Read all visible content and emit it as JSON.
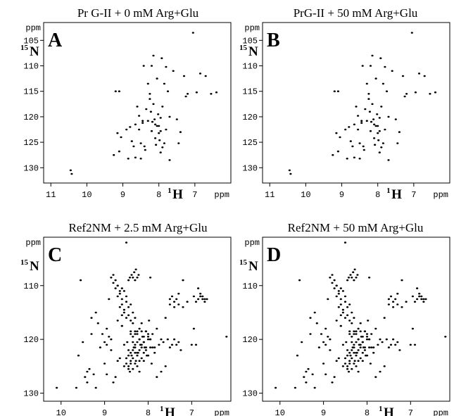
{
  "chart_data": [
    {
      "type": "scatter",
      "title": "Pr G-II + 0 mM Arg+Glu",
      "panel_label": "A",
      "y_nucleus": {
        "mass": "15",
        "element": "N"
      },
      "x_nucleus": {
        "mass": "1",
        "element": "H"
      },
      "y_unit": "ppm",
      "x_unit": "ppm",
      "x_reversed": true,
      "y_reversed": true,
      "xlim": [
        11.2,
        6.0
      ],
      "ylim": [
        101.5,
        133.0
      ],
      "x_ticks": [
        "11",
        "10",
        "9",
        "8",
        "7"
      ],
      "y_ticks": [
        "105",
        "110",
        "115",
        "120",
        "125",
        "130"
      ],
      "x": [
        10.45,
        10.42,
        9.25,
        9.1,
        9.05,
        8.85,
        8.7,
        8.65,
        8.6,
        8.55,
        8.5,
        8.45,
        8.42,
        8.38,
        8.3,
        8.25,
        8.22,
        8.2,
        8.18,
        8.15,
        8.12,
        8.1,
        8.08,
        8.05,
        8.02,
        8.0,
        7.98,
        7.95,
        7.92,
        7.9,
        7.85,
        7.8,
        7.75,
        7.7,
        7.6,
        7.5,
        7.45,
        7.3,
        7.2,
        7.05,
        6.95,
        6.85,
        6.7,
        6.55,
        6.4,
        9.2,
        9.1,
        8.9,
        8.8,
        8.65,
        8.5,
        8.35,
        8.3,
        8.2,
        8.15,
        8.05,
        7.95,
        7.9,
        7.8,
        7.7,
        8.4,
        8.45,
        8.0,
        7.85,
        9.15,
        8.75,
        8.55,
        8.25,
        8.1,
        7.95,
        7.4,
        7.25
      ],
      "y": [
        130.5,
        131.2,
        127.5,
        126.8,
        124.0,
        128.2,
        125.8,
        121.5,
        118.0,
        122.5,
        125.2,
        121.2,
        110.0,
        126.5,
        120.8,
        115.5,
        119.0,
        122.8,
        121.0,
        117.5,
        120.5,
        124.2,
        125.5,
        121.8,
        119.5,
        123.2,
        124.6,
        120.2,
        108.5,
        126.0,
        113.5,
        110.2,
        115.0,
        128.5,
        111.0,
        120.5,
        125.2,
        112.0,
        115.5,
        103.5,
        115.2,
        111.5,
        112.0,
        115.5,
        115.2,
        115.0,
        115.0,
        122.5,
        122.0,
        128.0,
        128.2,
        118.5,
        113.5,
        110.0,
        108.0,
        112.5,
        122.8,
        118.0,
        122.5,
        120.0,
        125.8,
        120.8,
        121.8,
        125.2,
        123.2,
        124.8,
        119.8,
        116.5,
        121.5,
        127.0,
        123.0,
        116.0
      ]
    },
    {
      "type": "scatter",
      "title": "PrG-II + 50 mM Arg+Glu",
      "panel_label": "B",
      "y_nucleus": {
        "mass": "15",
        "element": "N"
      },
      "x_nucleus": {
        "mass": "1",
        "element": "H"
      },
      "y_unit": "ppm",
      "x_unit": "ppm",
      "x_reversed": true,
      "y_reversed": true,
      "xlim": [
        11.2,
        6.0
      ],
      "ylim": [
        101.5,
        133.0
      ],
      "x_ticks": [
        "11",
        "10",
        "9",
        "8",
        "7"
      ],
      "y_ticks": [
        "105",
        "110",
        "115",
        "120",
        "125",
        "130"
      ],
      "x": [
        10.45,
        10.42,
        9.25,
        9.1,
        9.05,
        8.85,
        8.7,
        8.65,
        8.6,
        8.55,
        8.5,
        8.45,
        8.42,
        8.38,
        8.3,
        8.25,
        8.22,
        8.2,
        8.18,
        8.15,
        8.12,
        8.1,
        8.08,
        8.05,
        8.02,
        8.0,
        7.98,
        7.95,
        7.92,
        7.9,
        7.85,
        7.8,
        7.75,
        7.7,
        7.6,
        7.5,
        7.45,
        7.3,
        7.2,
        7.05,
        6.95,
        6.85,
        6.7,
        6.55,
        6.4,
        9.2,
        9.1,
        8.9,
        8.8,
        8.65,
        8.5,
        8.35,
        8.3,
        8.2,
        8.15,
        8.05,
        7.95,
        7.9,
        7.8,
        7.7,
        8.4,
        8.45,
        8.0,
        7.85,
        9.15,
        8.75,
        8.55,
        8.25,
        8.1,
        7.95,
        7.4,
        7.25
      ],
      "y": [
        130.5,
        131.2,
        127.5,
        126.8,
        124.0,
        128.2,
        125.8,
        121.5,
        118.0,
        122.5,
        125.2,
        121.2,
        110.0,
        126.5,
        120.8,
        115.5,
        119.0,
        122.8,
        121.0,
        117.5,
        120.5,
        124.2,
        125.5,
        121.8,
        119.5,
        123.2,
        124.6,
        120.2,
        108.5,
        126.0,
        113.5,
        110.2,
        115.0,
        128.5,
        111.0,
        120.5,
        125.2,
        112.0,
        115.5,
        103.5,
        115.2,
        111.5,
        112.0,
        115.5,
        115.2,
        115.0,
        115.0,
        122.5,
        122.0,
        128.0,
        128.2,
        118.5,
        113.5,
        110.0,
        108.0,
        112.5,
        122.8,
        118.0,
        122.5,
        120.0,
        125.8,
        120.8,
        121.8,
        125.2,
        123.2,
        124.8,
        119.8,
        116.5,
        121.5,
        127.0,
        123.0,
        116.0
      ]
    },
    {
      "type": "scatter",
      "title": "Ref2NM + 2.5 mM Arg+Glu",
      "panel_label": "C",
      "y_nucleus": {
        "mass": "15",
        "element": "N"
      },
      "x_nucleus": {
        "mass": "1",
        "element": "H"
      },
      "y_unit": "ppm",
      "x_unit": "ppm",
      "x_reversed": true,
      "y_reversed": true,
      "xlim": [
        10.4,
        6.1
      ],
      "ylim": [
        101.0,
        131.5
      ],
      "x_ticks": [
        "10",
        "9",
        "8",
        "7"
      ],
      "y_ticks": [
        "110",
        "120",
        "130"
      ],
      "x": [
        10.1,
        9.65,
        9.55,
        9.5,
        9.45,
        9.4,
        9.35,
        9.3,
        9.25,
        9.2,
        9.1,
        9.05,
        9.0,
        8.95,
        8.9,
        8.85,
        8.8,
        8.75,
        8.7,
        8.65,
        8.6,
        8.55,
        8.5,
        8.48,
        8.45,
        8.42,
        8.4,
        8.38,
        8.35,
        8.33,
        8.3,
        8.28,
        8.25,
        8.23,
        8.2,
        8.18,
        8.15,
        8.13,
        8.1,
        8.08,
        8.05,
        8.03,
        8.0,
        7.98,
        7.95,
        7.92,
        7.9,
        7.85,
        7.8,
        7.75,
        7.7,
        7.65,
        7.6,
        7.55,
        7.5,
        7.45,
        7.4,
        7.35,
        7.3,
        7.25,
        7.2,
        7.1,
        7.0,
        6.95,
        6.9,
        6.85,
        6.8,
        6.75,
        6.7,
        6.65,
        6.2,
        8.45,
        8.42,
        8.38,
        8.35,
        8.3,
        8.25,
        8.32,
        8.28,
        8.22,
        7.95,
        7.5,
        7.45,
        7.4,
        7.35,
        7.3,
        6.95,
        6.9,
        6.85,
        6.8,
        6.75,
        6.7,
        8.4,
        8.35,
        8.3,
        8.25,
        8.2,
        8.15,
        8.1,
        8.05,
        8.0,
        7.95,
        7.9,
        7.85,
        8.35,
        8.3,
        8.25,
        8.2,
        8.15,
        8.1,
        8.05,
        8.0,
        7.95,
        8.45,
        8.4,
        8.35,
        8.3,
        8.25,
        8.2,
        8.15,
        8.1,
        8.05,
        8.0,
        8.5,
        8.45,
        8.4,
        8.35,
        8.3,
        8.25,
        8.2,
        8.15,
        8.1,
        8.55,
        8.5,
        8.45,
        8.4,
        8.35,
        8.3,
        8.25,
        8.2,
        8.6,
        8.55,
        8.5,
        8.45,
        8.4,
        8.35,
        8.3,
        8.65,
        8.6,
        8.55,
        8.5,
        8.45,
        8.4,
        8.7,
        8.65,
        8.6,
        8.55,
        8.5,
        8.75,
        8.7,
        8.65,
        8.6,
        8.8,
        8.75,
        8.7,
        8.85,
        8.8,
        7.5,
        7.4,
        7.3,
        7.2,
        7.6,
        7.7,
        7.8,
        9.3,
        9.0,
        8.95,
        8.9,
        8.85,
        9.6,
        9.15,
        8.7,
        8.6,
        9.4,
        9.2,
        8.95
      ],
      "y": [
        129.0,
        129.0,
        109.0,
        120.5,
        127.0,
        126.0,
        125.5,
        116.0,
        126.5,
        115.0,
        121.5,
        119.0,
        124.5,
        118.0,
        112.5,
        122.0,
        128.0,
        127.0,
        124.0,
        123.5,
        117.5,
        121.0,
        102.0,
        120.5,
        125.5,
        126.0,
        118.5,
        123.0,
        117.0,
        121.5,
        119.0,
        124.0,
        118.5,
        122.5,
        120.0,
        121.0,
        117.0,
        119.5,
        120.5,
        121.5,
        118.5,
        123.0,
        119.5,
        116.5,
        120.0,
        124.5,
        121.5,
        122.5,
        118.0,
        121.0,
        120.0,
        120.5,
        116.0,
        120.0,
        121.5,
        121.0,
        120.0,
        121.0,
        120.5,
        122.0,
        109.0,
        113.0,
        121.0,
        118.0,
        121.0,
        110.5,
        112.0,
        112.5,
        113.0,
        112.5,
        119.5,
        109.0,
        108.5,
        108.0,
        108.5,
        109.0,
        108.5,
        107.5,
        107.0,
        108.0,
        108.5,
        112.5,
        112.0,
        113.0,
        112.5,
        111.5,
        112.0,
        113.0,
        112.5,
        111.5,
        112.0,
        112.5,
        119.0,
        119.5,
        118.5,
        119.0,
        118.0,
        118.5,
        119.5,
        118.5,
        119.0,
        120.0,
        119.0,
        121.5,
        120.5,
        121.0,
        120.5,
        120.0,
        121.0,
        120.5,
        121.5,
        120.0,
        121.5,
        122.0,
        122.5,
        122.0,
        121.5,
        122.5,
        122.0,
        121.5,
        122.5,
        122.0,
        123.0,
        123.5,
        123.0,
        124.0,
        123.5,
        122.5,
        123.0,
        124.0,
        123.5,
        124.0,
        125.0,
        124.5,
        125.0,
        124.5,
        125.5,
        124.5,
        125.0,
        126.0,
        115.5,
        115.0,
        116.0,
        115.5,
        116.5,
        115.0,
        116.0,
        114.0,
        113.5,
        114.5,
        113.0,
        114.0,
        113.5,
        112.0,
        111.5,
        112.5,
        111.0,
        112.0,
        110.5,
        110.0,
        111.0,
        110.5,
        109.5,
        109.0,
        110.0,
        108.5,
        108.0,
        113.5,
        114.0,
        113.5,
        114.0,
        125.0,
        126.0,
        127.0,
        119.0,
        120.5,
        121.0,
        119.5,
        120.0,
        123.0,
        117.0,
        116.5,
        117.5,
        128.0,
        129.0,
        126.5
      ]
    },
    {
      "type": "scatter",
      "title": "Ref2NM + 50 mM Arg+Glu",
      "panel_label": "D",
      "y_nucleus": {
        "mass": "15",
        "element": "N"
      },
      "x_nucleus": {
        "mass": "1",
        "element": "H"
      },
      "y_unit": "ppm",
      "x_unit": "ppm",
      "x_reversed": true,
      "y_reversed": true,
      "xlim": [
        10.4,
        6.1
      ],
      "ylim": [
        101.0,
        131.5
      ],
      "x_ticks": [
        "10",
        "9",
        "8",
        "7"
      ],
      "y_ticks": [
        "110",
        "120",
        "130"
      ],
      "x": [
        10.1,
        9.65,
        9.55,
        9.5,
        9.45,
        9.4,
        9.35,
        9.3,
        9.25,
        9.2,
        9.1,
        9.05,
        9.0,
        8.95,
        8.9,
        8.85,
        8.8,
        8.75,
        8.7,
        8.65,
        8.6,
        8.55,
        8.5,
        8.48,
        8.45,
        8.42,
        8.4,
        8.38,
        8.35,
        8.33,
        8.3,
        8.28,
        8.25,
        8.23,
        8.2,
        8.18,
        8.15,
        8.13,
        8.1,
        8.08,
        8.05,
        8.03,
        8.0,
        7.98,
        7.95,
        7.92,
        7.9,
        7.85,
        7.8,
        7.75,
        7.7,
        7.65,
        7.6,
        7.55,
        7.5,
        7.45,
        7.4,
        7.35,
        7.3,
        7.25,
        7.2,
        7.1,
        7.0,
        6.95,
        6.9,
        6.85,
        6.8,
        6.75,
        6.7,
        6.65,
        6.2,
        8.45,
        8.42,
        8.38,
        8.35,
        8.3,
        8.25,
        8.32,
        8.28,
        8.22,
        7.95,
        7.5,
        7.45,
        7.4,
        7.35,
        7.3,
        6.95,
        6.9,
        6.85,
        6.8,
        6.75,
        6.7,
        8.4,
        8.35,
        8.3,
        8.25,
        8.2,
        8.15,
        8.1,
        8.05,
        8.0,
        7.95,
        7.9,
        7.85,
        8.35,
        8.3,
        8.25,
        8.2,
        8.15,
        8.1,
        8.05,
        8.0,
        7.95,
        8.45,
        8.4,
        8.35,
        8.3,
        8.25,
        8.2,
        8.15,
        8.1,
        8.05,
        8.0,
        8.5,
        8.45,
        8.4,
        8.35,
        8.3,
        8.25,
        8.2,
        8.15,
        8.1,
        8.55,
        8.5,
        8.45,
        8.4,
        8.35,
        8.3,
        8.25,
        8.2,
        8.6,
        8.55,
        8.5,
        8.45,
        8.4,
        8.35,
        8.3,
        8.65,
        8.6,
        8.55,
        8.5,
        8.45,
        8.4,
        8.7,
        8.65,
        8.6,
        8.55,
        8.5,
        8.75,
        8.7,
        8.65,
        8.6,
        8.8,
        8.75,
        8.7,
        8.85,
        8.8,
        7.5,
        7.4,
        7.3,
        7.2,
        7.6,
        7.7,
        7.8,
        9.3,
        9.0,
        8.95,
        8.9,
        8.85,
        9.6,
        9.15,
        8.7,
        8.6,
        9.4,
        9.2,
        8.95
      ],
      "y": [
        129.0,
        129.0,
        109.0,
        120.5,
        127.0,
        126.0,
        125.5,
        116.0,
        126.5,
        115.0,
        121.5,
        119.0,
        124.5,
        118.0,
        112.5,
        122.0,
        128.0,
        127.0,
        124.0,
        123.5,
        117.5,
        121.0,
        102.0,
        120.5,
        125.5,
        126.0,
        118.5,
        123.0,
        117.0,
        121.5,
        119.0,
        124.0,
        118.5,
        122.5,
        120.0,
        121.0,
        117.0,
        119.5,
        120.5,
        121.5,
        118.5,
        123.0,
        119.5,
        116.5,
        120.0,
        124.5,
        121.5,
        122.5,
        118.0,
        121.0,
        120.0,
        120.5,
        116.0,
        120.0,
        121.5,
        121.0,
        120.0,
        121.0,
        120.5,
        122.0,
        109.0,
        113.0,
        121.0,
        118.0,
        121.0,
        110.5,
        112.0,
        112.5,
        113.0,
        112.5,
        119.5,
        109.0,
        108.5,
        108.0,
        108.5,
        109.0,
        108.5,
        107.5,
        107.0,
        108.0,
        108.5,
        112.5,
        112.0,
        113.0,
        112.5,
        111.5,
        112.0,
        113.0,
        112.5,
        111.5,
        112.0,
        112.5,
        119.0,
        119.5,
        118.5,
        119.0,
        118.0,
        118.5,
        119.5,
        118.5,
        119.0,
        120.0,
        119.0,
        121.5,
        120.5,
        121.0,
        120.5,
        120.0,
        121.0,
        120.5,
        121.5,
        120.0,
        121.5,
        122.0,
        122.5,
        122.0,
        121.5,
        122.5,
        122.0,
        121.5,
        122.5,
        122.0,
        123.0,
        123.5,
        123.0,
        124.0,
        123.5,
        122.5,
        123.0,
        124.0,
        123.5,
        124.0,
        125.0,
        124.5,
        125.0,
        124.5,
        125.5,
        124.5,
        125.0,
        126.0,
        115.5,
        115.0,
        116.0,
        115.5,
        116.5,
        115.0,
        116.0,
        114.0,
        113.5,
        114.5,
        113.0,
        114.0,
        113.5,
        112.0,
        111.5,
        112.5,
        111.0,
        112.0,
        110.5,
        110.0,
        111.0,
        110.5,
        109.5,
        109.0,
        110.0,
        108.5,
        108.0,
        113.5,
        114.0,
        113.5,
        114.0,
        125.0,
        126.0,
        127.0,
        119.0,
        120.5,
        121.0,
        119.5,
        120.0,
        123.0,
        117.0,
        116.5,
        117.5,
        128.0,
        129.0,
        126.5
      ]
    }
  ]
}
